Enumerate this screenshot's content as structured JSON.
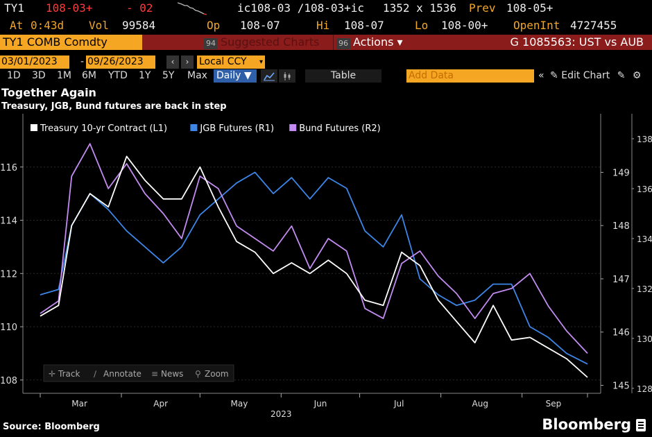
{
  "quote": {
    "ticker": "TY1",
    "last": "108-03+",
    "change": "- 02",
    "bid_ask": "ic108-03 /108-03+ic",
    "size": "1352 x 1536",
    "prev_label": "Prev",
    "prev": "108-05+",
    "at_label": "At",
    "at_time": "0:43d",
    "vol_label": "Vol",
    "vol": "99584",
    "op_label": "Op",
    "op": "108-07",
    "hi_label": "Hi",
    "hi": "108-07",
    "lo_label": "Lo",
    "lo": "108-00+",
    "openint_label": "OpenInt",
    "openint": "4727455"
  },
  "toolbar": {
    "security": "TY1 COMB Comdty",
    "suggested_num": "94",
    "suggested_label": "Suggested Charts",
    "actions_num": "96",
    "actions_label": "Actions ▾",
    "graph_title": "G 1085563: UST vs AUB",
    "start_date": "03/01/2023",
    "end_date": "09/26/2023",
    "date_sep": "-",
    "currency": "Local CCY",
    "ranges": [
      "1D",
      "3D",
      "1M",
      "6M",
      "YTD",
      "1Y",
      "5Y",
      "Max"
    ],
    "frequency": "Daily ▼",
    "table_label": "Table",
    "add_data_placeholder": "Add Data",
    "edit_chart_label": "Edit Chart"
  },
  "chart_tools": [
    "Track",
    "Annotate",
    "News",
    "Zoom"
  ],
  "colors": {
    "treasury": "#ffffff",
    "jgb": "#3d86e8",
    "bund": "#c48cf2",
    "amber": "#f5a623",
    "red": "#ff3b3b"
  },
  "chart_data": {
    "type": "line",
    "title": "Together Again",
    "subtitle": "Treasury, JGB, Bund futures are back in step",
    "source": "Source: Bloomberg",
    "brand": "Bloomberg",
    "xlabel": "2023",
    "x_ticks": [
      "Mar",
      "Apr",
      "May",
      "Jun",
      "Jul",
      "Aug",
      "Sep"
    ],
    "x_range": [
      "2023-03-01",
      "2023-09-26"
    ],
    "legend_placement": "top-left",
    "axes": {
      "L1": {
        "range": [
          107.5,
          118.0
        ],
        "ticks": [
          108,
          110,
          112,
          114,
          116
        ]
      },
      "R1": {
        "range": [
          144.85,
          150.1
        ],
        "ticks": [
          145,
          146,
          147,
          148,
          149
        ]
      },
      "R2": {
        "range": [
          127.8,
          139.0
        ],
        "ticks": [
          128,
          130,
          132,
          134,
          136,
          138
        ]
      }
    },
    "series": [
      {
        "name": "Treasury 10-yr Contract (L1)",
        "axis": "L1",
        "x": [
          "2023-03-01",
          "2023-03-08",
          "2023-03-13",
          "2023-03-20",
          "2023-03-27",
          "2023-04-03",
          "2023-04-10",
          "2023-04-17",
          "2023-04-24",
          "2023-05-01",
          "2023-05-08",
          "2023-05-15",
          "2023-05-22",
          "2023-05-29",
          "2023-06-05",
          "2023-06-12",
          "2023-06-19",
          "2023-06-26",
          "2023-07-03",
          "2023-07-10",
          "2023-07-17",
          "2023-07-24",
          "2023-07-31",
          "2023-08-07",
          "2023-08-14",
          "2023-08-21",
          "2023-08-28",
          "2023-09-04",
          "2023-09-11",
          "2023-09-18",
          "2023-09-26"
        ],
        "values": [
          110.4,
          110.8,
          113.8,
          115.0,
          114.5,
          116.4,
          115.5,
          114.8,
          114.8,
          116.0,
          114.5,
          113.2,
          112.8,
          112.0,
          112.4,
          112.0,
          112.5,
          112.0,
          111.0,
          110.8,
          112.8,
          112.3,
          111.0,
          110.2,
          109.4,
          110.8,
          109.5,
          109.6,
          109.2,
          108.8,
          108.1
        ]
      },
      {
        "name": "JGB Futures (R1)",
        "axis": "R1",
        "x": [
          "2023-03-01",
          "2023-03-08",
          "2023-03-13",
          "2023-03-20",
          "2023-03-27",
          "2023-04-03",
          "2023-04-10",
          "2023-04-17",
          "2023-04-24",
          "2023-05-01",
          "2023-05-08",
          "2023-05-15",
          "2023-05-22",
          "2023-05-29",
          "2023-06-05",
          "2023-06-12",
          "2023-06-19",
          "2023-06-26",
          "2023-07-03",
          "2023-07-10",
          "2023-07-17",
          "2023-07-24",
          "2023-07-31",
          "2023-08-07",
          "2023-08-14",
          "2023-08-21",
          "2023-08-28",
          "2023-09-04",
          "2023-09-11",
          "2023-09-18",
          "2023-09-26"
        ],
        "values": [
          146.7,
          146.8,
          148.0,
          148.6,
          148.3,
          147.9,
          147.6,
          147.3,
          147.6,
          148.2,
          148.5,
          148.8,
          149.0,
          148.6,
          148.9,
          148.5,
          148.9,
          148.7,
          147.9,
          147.6,
          148.2,
          147.0,
          146.7,
          146.5,
          146.6,
          146.9,
          146.9,
          146.1,
          145.9,
          145.6,
          145.4
        ]
      },
      {
        "name": "Bund Futures (R2)",
        "axis": "R2",
        "x": [
          "2023-03-01",
          "2023-03-08",
          "2023-03-13",
          "2023-03-20",
          "2023-03-27",
          "2023-04-03",
          "2023-04-10",
          "2023-04-17",
          "2023-04-24",
          "2023-05-01",
          "2023-05-08",
          "2023-05-15",
          "2023-05-22",
          "2023-05-29",
          "2023-06-05",
          "2023-06-12",
          "2023-06-19",
          "2023-06-26",
          "2023-07-03",
          "2023-07-10",
          "2023-07-17",
          "2023-07-24",
          "2023-07-31",
          "2023-08-07",
          "2023-08-14",
          "2023-08-21",
          "2023-08-28",
          "2023-09-04",
          "2023-09-11",
          "2023-09-18",
          "2023-09-26"
        ],
        "values": [
          131.0,
          131.5,
          136.5,
          137.8,
          136.0,
          137.0,
          135.8,
          135.0,
          134.0,
          136.5,
          136.0,
          134.5,
          134.0,
          133.5,
          134.5,
          132.8,
          134.0,
          133.5,
          131.2,
          130.8,
          133.0,
          133.5,
          132.5,
          131.8,
          130.8,
          131.8,
          132.0,
          132.6,
          131.3,
          130.3,
          129.4
        ]
      }
    ]
  }
}
